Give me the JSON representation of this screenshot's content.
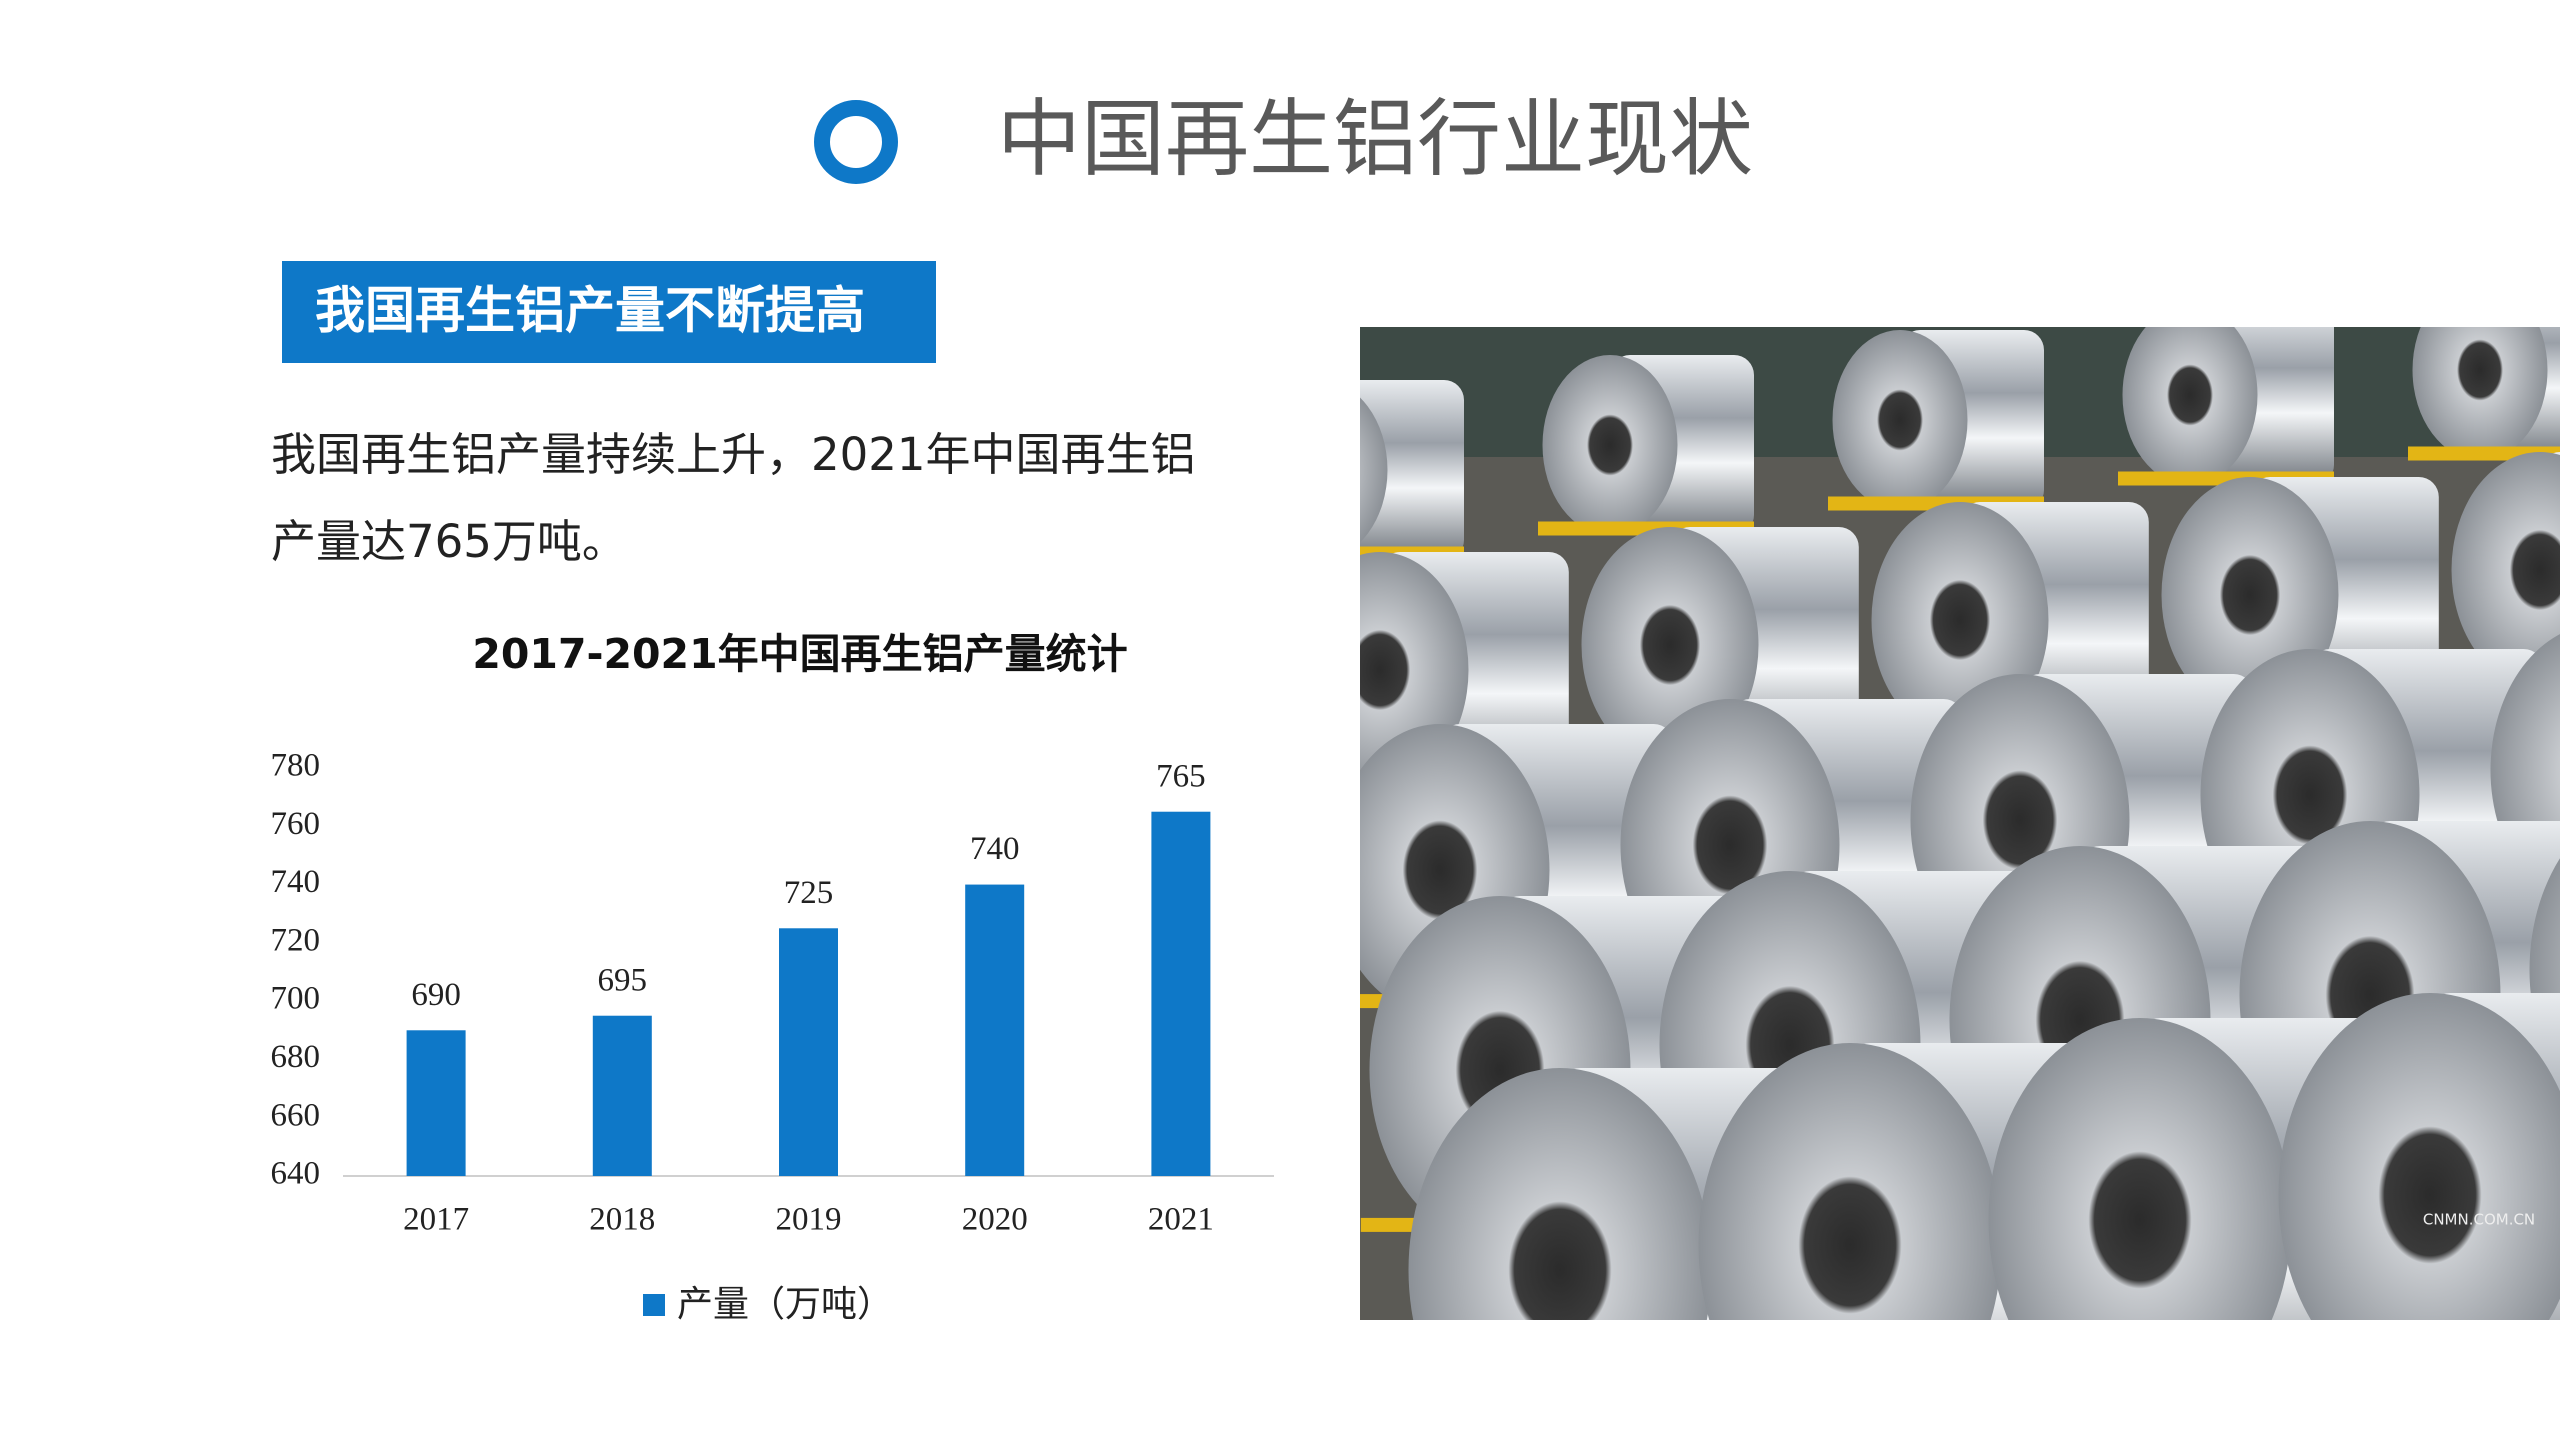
{
  "header": {
    "title": "中国再生铝行业现状"
  },
  "tag": "我国再生铝产量不断提高",
  "paragraph": {
    "lines": [
      "我国再生铝产量持续上升，2021年中国再生铝",
      "产量达765万吨。"
    ]
  },
  "photo": {
    "watermark": "CNMN.COM.CN"
  },
  "chart_data": {
    "type": "bar",
    "title": "2017-2021年中国再生铝产量统计",
    "categories": [
      "2017",
      "2018",
      "2019",
      "2020",
      "2021"
    ],
    "series": [
      {
        "name": "产量（万吨）",
        "color": "#0e78c8",
        "values": [
          690,
          695,
          725,
          740,
          765
        ]
      }
    ],
    "ylim": [
      640,
      780
    ],
    "yticks": [
      640,
      660,
      680,
      700,
      720,
      740,
      760,
      780
    ],
    "grid": false,
    "legend": "bottom",
    "data_labels": true
  }
}
